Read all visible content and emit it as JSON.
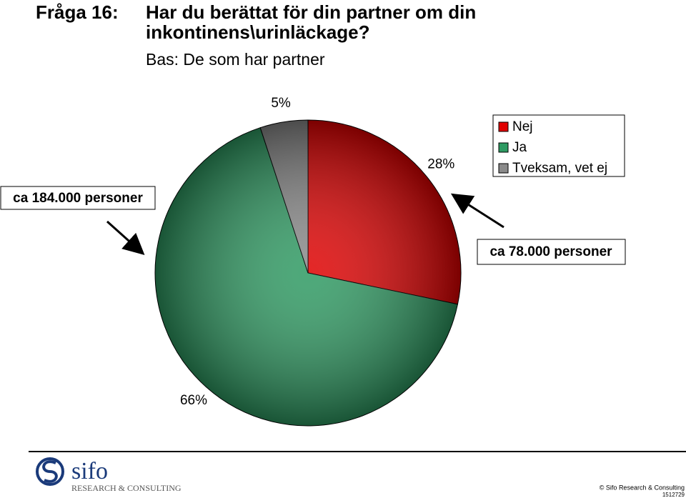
{
  "chart_data": {
    "type": "pie",
    "question_number": "Fråga 16:",
    "title": "Har du berättat för din partner om din inkontinens\\urinläckage?",
    "subtitle": "Bas: De som har partner",
    "categories": [
      "Nej",
      "Ja",
      "Tveksam, vet ej"
    ],
    "values": [
      28,
      66,
      5
    ],
    "value_labels": [
      "28%",
      "66%",
      "5%"
    ],
    "colors": [
      "#e00000",
      "#2e9a62",
      "#8a8a8a"
    ],
    "annotations": [
      "ca 184.000 personer",
      "ca 78.000 personer"
    ]
  },
  "footer": {
    "logo": "sifo",
    "logo_tagline": "RESEARCH & CONSULTING",
    "copyright": "© Sifo Research & Consulting",
    "id": "1512729"
  }
}
